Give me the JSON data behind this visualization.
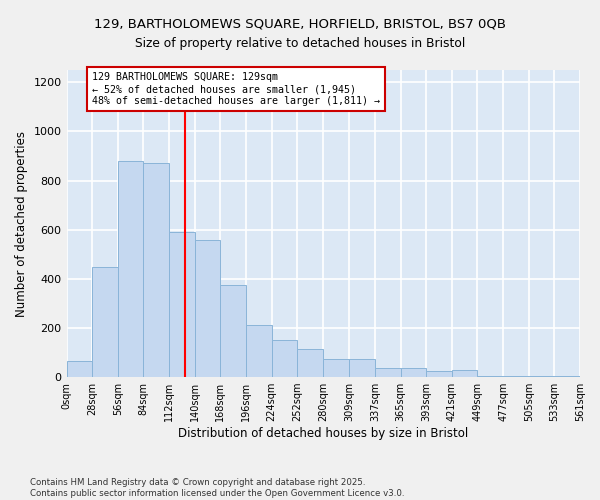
{
  "title_line1": "129, BARTHOLOMEWS SQUARE, HORFIELD, BRISTOL, BS7 0QB",
  "title_line2": "Size of property relative to detached houses in Bristol",
  "xlabel": "Distribution of detached houses by size in Bristol",
  "ylabel": "Number of detached properties",
  "bin_edges": [
    0,
    28,
    56,
    84,
    112,
    140,
    168,
    196,
    224,
    252,
    280,
    309,
    337,
    365,
    393,
    421,
    449,
    477,
    505,
    533,
    561
  ],
  "bar_heights": [
    65,
    450,
    880,
    870,
    590,
    560,
    375,
    210,
    150,
    115,
    75,
    75,
    35,
    35,
    25,
    30,
    5,
    5,
    5,
    5
  ],
  "bar_color": "#c5d8f0",
  "bar_edge_color": "#8ab4d8",
  "background_color": "#dce8f5",
  "grid_color": "#ffffff",
  "red_line_x": 129,
  "annotation_text": "129 BARTHOLOMEWS SQUARE: 129sqm\n← 52% of detached houses are smaller (1,945)\n48% of semi-detached houses are larger (1,811) →",
  "annotation_box_color": "#ffffff",
  "annotation_box_edge": "#cc0000",
  "ylim": [
    0,
    1250
  ],
  "yticks": [
    0,
    200,
    400,
    600,
    800,
    1000,
    1200
  ],
  "footer_line1": "Contains HM Land Registry data © Crown copyright and database right 2025.",
  "footer_line2": "Contains public sector information licensed under the Open Government Licence v3.0.",
  "fig_bg": "#f0f0f0"
}
